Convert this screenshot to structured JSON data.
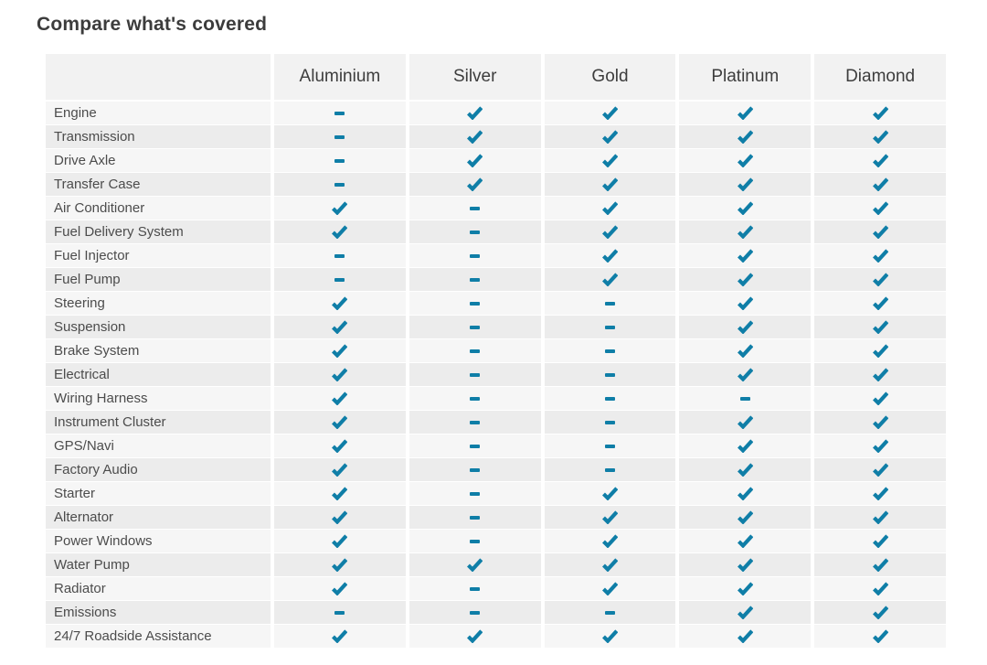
{
  "page": {
    "title": "Compare what's covered"
  },
  "table": {
    "check_color": "#0f7ea7",
    "columns": [
      "Aluminium",
      "Silver",
      "Gold",
      "Platinum",
      "Diamond"
    ],
    "rows": [
      {
        "label": "Engine",
        "covered": [
          false,
          true,
          true,
          true,
          true
        ]
      },
      {
        "label": "Transmission",
        "covered": [
          false,
          true,
          true,
          true,
          true
        ]
      },
      {
        "label": "Drive Axle",
        "covered": [
          false,
          true,
          true,
          true,
          true
        ]
      },
      {
        "label": "Transfer Case",
        "covered": [
          false,
          true,
          true,
          true,
          true
        ]
      },
      {
        "label": "Air Conditioner",
        "covered": [
          true,
          false,
          true,
          true,
          true
        ]
      },
      {
        "label": "Fuel Delivery System",
        "covered": [
          true,
          false,
          true,
          true,
          true
        ]
      },
      {
        "label": "Fuel Injector",
        "covered": [
          false,
          false,
          true,
          true,
          true
        ]
      },
      {
        "label": "Fuel Pump",
        "covered": [
          false,
          false,
          true,
          true,
          true
        ]
      },
      {
        "label": "Steering",
        "covered": [
          true,
          false,
          false,
          true,
          true
        ]
      },
      {
        "label": "Suspension",
        "covered": [
          true,
          false,
          false,
          true,
          true
        ]
      },
      {
        "label": "Brake System",
        "covered": [
          true,
          false,
          false,
          true,
          true
        ]
      },
      {
        "label": "Electrical",
        "covered": [
          true,
          false,
          false,
          true,
          true
        ]
      },
      {
        "label": "Wiring Harness",
        "covered": [
          true,
          false,
          false,
          false,
          true
        ]
      },
      {
        "label": "Instrument Cluster",
        "covered": [
          true,
          false,
          false,
          true,
          true
        ]
      },
      {
        "label": "GPS/Navi",
        "covered": [
          true,
          false,
          false,
          true,
          true
        ]
      },
      {
        "label": "Factory Audio",
        "covered": [
          true,
          false,
          false,
          true,
          true
        ]
      },
      {
        "label": "Starter",
        "covered": [
          true,
          false,
          true,
          true,
          true
        ]
      },
      {
        "label": "Alternator",
        "covered": [
          true,
          false,
          true,
          true,
          true
        ]
      },
      {
        "label": "Power Windows",
        "covered": [
          true,
          false,
          true,
          true,
          true
        ]
      },
      {
        "label": "Water Pump",
        "covered": [
          true,
          true,
          true,
          true,
          true
        ]
      },
      {
        "label": "Radiator",
        "covered": [
          true,
          false,
          true,
          true,
          true
        ]
      },
      {
        "label": "Emissions",
        "covered": [
          false,
          false,
          false,
          true,
          true
        ]
      },
      {
        "label": "24/7 Roadside Assistance",
        "covered": [
          true,
          true,
          true,
          true,
          true
        ]
      }
    ]
  }
}
